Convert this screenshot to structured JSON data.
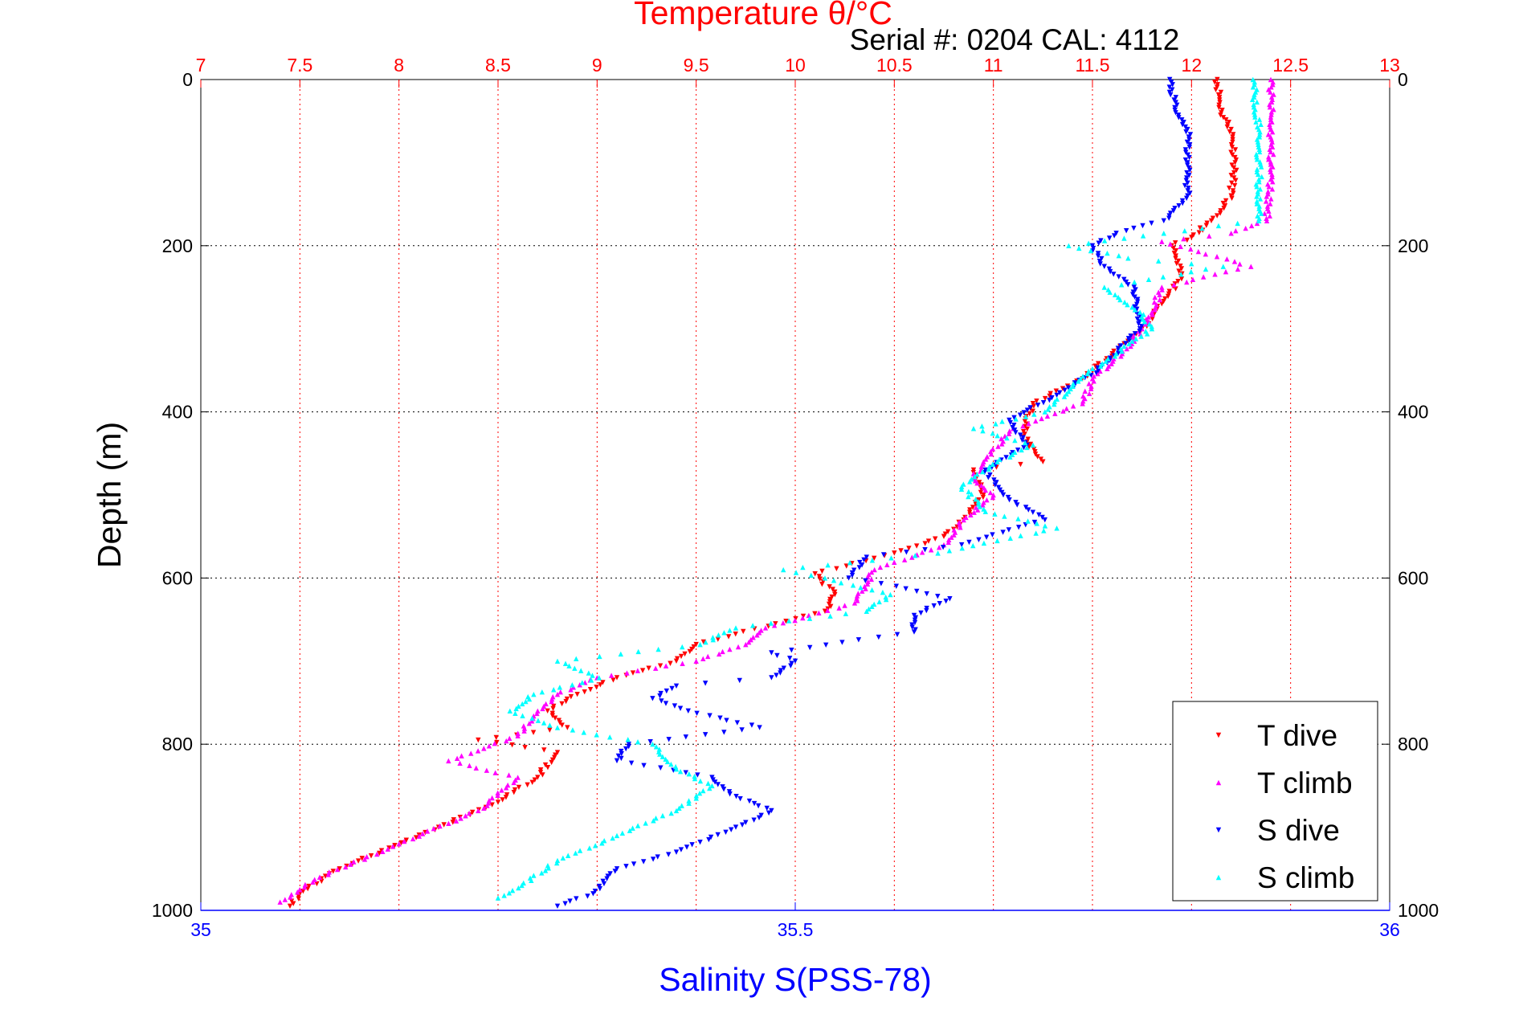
{
  "chart_data": {
    "type": "scatter",
    "title": "Temperature θ/°C",
    "subtitle": "Serial #: 0204  CAL: 4112",
    "ylabel": "Depth (m)",
    "xlabel": "Salinity S(PSS-78)",
    "ylim": [
      0,
      1000
    ],
    "y_reversed": true,
    "temperature_axis": {
      "range": [
        7,
        13
      ],
      "position": "top",
      "color": "#ff0000",
      "ticks": [
        "7",
        "7.5",
        "8",
        "8.5",
        "9",
        "9.5",
        "10",
        "10.5",
        "11",
        "11.5",
        "12",
        "12.5",
        "13"
      ]
    },
    "salinity_axis": {
      "range": [
        35,
        36
      ],
      "position": "bottom",
      "color": "#0000ff",
      "ticks": [
        "35",
        "35.5",
        "36"
      ]
    },
    "depth_ticks": [
      "0",
      "200",
      "400",
      "600",
      "800",
      "1000"
    ],
    "grid": true,
    "legend_position": "bottom-right",
    "series": [
      {
        "name": "T dive",
        "axis": "temperature",
        "color": "#ff0000",
        "marker": "triangle-down",
        "points": [
          [
            12.13,
            0
          ],
          [
            12.15,
            40
          ],
          [
            12.2,
            60
          ],
          [
            12.22,
            100
          ],
          [
            12.2,
            140
          ],
          [
            12.1,
            170
          ],
          [
            12.0,
            190
          ],
          [
            11.9,
            200
          ],
          [
            11.95,
            240
          ],
          [
            11.85,
            270
          ],
          [
            11.75,
            300
          ],
          [
            11.6,
            330
          ],
          [
            11.45,
            360
          ],
          [
            11.2,
            390
          ],
          [
            11.15,
            430
          ],
          [
            11.25,
            460
          ],
          [
            10.9,
            470
          ],
          [
            10.95,
            500
          ],
          [
            10.85,
            530
          ],
          [
            10.75,
            550
          ],
          [
            10.5,
            570
          ],
          [
            10.1,
            595
          ],
          [
            10.2,
            620
          ],
          [
            10.15,
            640
          ],
          [
            9.9,
            655
          ],
          [
            9.5,
            680
          ],
          [
            9.4,
            700
          ],
          [
            9.1,
            720
          ],
          [
            8.9,
            740
          ],
          [
            8.75,
            760
          ],
          [
            8.85,
            780
          ],
          [
            8.4,
            795
          ],
          [
            8.8,
            810
          ],
          [
            8.7,
            840
          ],
          [
            8.5,
            870
          ],
          [
            8.2,
            900
          ],
          [
            7.95,
            925
          ],
          [
            7.7,
            950
          ],
          [
            7.5,
            980
          ],
          [
            7.45,
            995
          ]
        ]
      },
      {
        "name": "T climb",
        "axis": "temperature",
        "color": "#ff00ff",
        "marker": "triangle-up",
        "points": [
          [
            12.4,
            0
          ],
          [
            12.4,
            60
          ],
          [
            12.4,
            120
          ],
          [
            12.38,
            170
          ],
          [
            12.2,
            185
          ],
          [
            11.85,
            195
          ],
          [
            12.3,
            225
          ],
          [
            11.85,
            250
          ],
          [
            11.8,
            280
          ],
          [
            11.75,
            300
          ],
          [
            11.65,
            330
          ],
          [
            11.5,
            360
          ],
          [
            11.45,
            390
          ],
          [
            11.1,
            420
          ],
          [
            10.95,
            460
          ],
          [
            10.9,
            480
          ],
          [
            11.0,
            500
          ],
          [
            10.85,
            530
          ],
          [
            10.75,
            560
          ],
          [
            10.4,
            590
          ],
          [
            10.35,
            610
          ],
          [
            10.3,
            630
          ],
          [
            9.85,
            660
          ],
          [
            9.75,
            680
          ],
          [
            9.5,
            700
          ],
          [
            9.0,
            720
          ],
          [
            8.8,
            740
          ],
          [
            8.7,
            760
          ],
          [
            8.6,
            790
          ],
          [
            8.25,
            820
          ],
          [
            8.6,
            840
          ],
          [
            8.4,
            880
          ],
          [
            8.0,
            920
          ],
          [
            7.6,
            960
          ],
          [
            7.4,
            990
          ]
        ]
      },
      {
        "name": "S dive",
        "axis": "salinity",
        "color": "#0000ff",
        "marker": "triangle-down",
        "points": [
          [
            35.815,
            0
          ],
          [
            35.82,
            40
          ],
          [
            35.83,
            60
          ],
          [
            35.83,
            100
          ],
          [
            35.83,
            140
          ],
          [
            35.81,
            170
          ],
          [
            35.77,
            185
          ],
          [
            35.75,
            200
          ],
          [
            35.76,
            225
          ],
          [
            35.785,
            250
          ],
          [
            35.79,
            300
          ],
          [
            35.755,
            350
          ],
          [
            35.72,
            380
          ],
          [
            35.68,
            410
          ],
          [
            35.695,
            440
          ],
          [
            35.66,
            470
          ],
          [
            35.675,
            500
          ],
          [
            35.71,
            530
          ],
          [
            35.64,
            560
          ],
          [
            35.56,
            575
          ],
          [
            35.545,
            600
          ],
          [
            35.585,
            610
          ],
          [
            35.63,
            625
          ],
          [
            35.6,
            645
          ],
          [
            35.6,
            665
          ],
          [
            35.48,
            690
          ],
          [
            35.5,
            700
          ],
          [
            35.48,
            720
          ],
          [
            35.4,
            730
          ],
          [
            35.38,
            745
          ],
          [
            35.41,
            760
          ],
          [
            35.47,
            780
          ],
          [
            35.36,
            800
          ],
          [
            35.35,
            820
          ],
          [
            35.43,
            840
          ],
          [
            35.445,
            860
          ],
          [
            35.48,
            880
          ],
          [
            35.45,
            900
          ],
          [
            35.4,
            930
          ],
          [
            35.35,
            950
          ],
          [
            35.33,
            980
          ],
          [
            35.3,
            995
          ]
        ]
      },
      {
        "name": "S climb",
        "axis": "salinity",
        "color": "#00ffff",
        "marker": "triangle-up",
        "points": [
          [
            35.885,
            0
          ],
          [
            35.89,
            60
          ],
          [
            35.89,
            120
          ],
          [
            35.89,
            170
          ],
          [
            35.81,
            185
          ],
          [
            35.73,
            200
          ],
          [
            35.78,
            215
          ],
          [
            35.86,
            225
          ],
          [
            35.76,
            250
          ],
          [
            35.79,
            280
          ],
          [
            35.8,
            300
          ],
          [
            35.77,
            330
          ],
          [
            35.74,
            360
          ],
          [
            35.71,
            400
          ],
          [
            35.65,
            420
          ],
          [
            35.7,
            440
          ],
          [
            35.67,
            460
          ],
          [
            35.64,
            490
          ],
          [
            35.66,
            520
          ],
          [
            35.72,
            540
          ],
          [
            35.62,
            570
          ],
          [
            35.49,
            590
          ],
          [
            35.525,
            600
          ],
          [
            35.58,
            620
          ],
          [
            35.56,
            640
          ],
          [
            35.45,
            660
          ],
          [
            35.42,
            680
          ],
          [
            35.3,
            700
          ],
          [
            35.335,
            720
          ],
          [
            35.28,
            740
          ],
          [
            35.26,
            760
          ],
          [
            35.3,
            780
          ],
          [
            35.38,
            800
          ],
          [
            35.4,
            830
          ],
          [
            35.43,
            850
          ],
          [
            35.4,
            880
          ],
          [
            35.35,
            910
          ],
          [
            35.3,
            940
          ],
          [
            35.27,
            970
          ],
          [
            35.25,
            985
          ]
        ]
      }
    ]
  }
}
